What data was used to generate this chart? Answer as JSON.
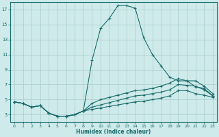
{
  "xlabel": "Humidex (Indice chaleur)",
  "bg_color": "#ceeaea",
  "grid_color": "#b0d0d0",
  "line_color": "#1a6b6b",
  "xlim": [
    -0.5,
    23.5
  ],
  "ylim": [
    2,
    18
  ],
  "xticks": [
    0,
    1,
    2,
    3,
    4,
    5,
    6,
    7,
    8,
    9,
    10,
    11,
    12,
    13,
    14,
    15,
    16,
    17,
    18,
    19,
    20,
    21,
    22,
    23
  ],
  "yticks": [
    3,
    5,
    7,
    9,
    11,
    13,
    15,
    17
  ],
  "series1_x": [
    0,
    1,
    2,
    3,
    4,
    5,
    6,
    7,
    8,
    9,
    10,
    11,
    12,
    13,
    14,
    15,
    16,
    17,
    18,
    19,
    20,
    21,
    22,
    23
  ],
  "series1_y": [
    4.7,
    4.5,
    4.0,
    4.2,
    3.2,
    2.8,
    2.8,
    3.0,
    3.5,
    10.2,
    14.5,
    15.8,
    17.5,
    17.5,
    17.2,
    13.2,
    11.0,
    9.5,
    8.0,
    7.5,
    7.5,
    6.7,
    6.5,
    5.5
  ],
  "series2_x": [
    0,
    1,
    2,
    3,
    4,
    5,
    6,
    7,
    8,
    9,
    10,
    11,
    12,
    13,
    14,
    15,
    16,
    17,
    18,
    19,
    20,
    21,
    22,
    23
  ],
  "series2_y": [
    4.7,
    4.5,
    4.0,
    4.2,
    3.2,
    2.8,
    2.8,
    3.0,
    3.5,
    4.5,
    5.0,
    5.3,
    5.6,
    5.9,
    6.2,
    6.3,
    6.5,
    6.8,
    7.2,
    7.8,
    7.5,
    7.5,
    6.8,
    5.8
  ],
  "series3_x": [
    0,
    1,
    2,
    3,
    4,
    5,
    6,
    7,
    8,
    9,
    10,
    11,
    12,
    13,
    14,
    15,
    16,
    17,
    18,
    19,
    20,
    21,
    22,
    23
  ],
  "series3_y": [
    4.7,
    4.5,
    4.0,
    4.2,
    3.2,
    2.8,
    2.8,
    3.0,
    3.5,
    4.0,
    4.3,
    4.6,
    4.9,
    5.2,
    5.5,
    5.6,
    5.8,
    6.0,
    6.3,
    7.0,
    6.9,
    6.8,
    6.3,
    5.5
  ],
  "series4_x": [
    0,
    1,
    2,
    3,
    4,
    5,
    6,
    7,
    8,
    9,
    10,
    11,
    12,
    13,
    14,
    15,
    16,
    17,
    18,
    19,
    20,
    21,
    22,
    23
  ],
  "series4_y": [
    4.7,
    4.5,
    4.0,
    4.2,
    3.2,
    2.8,
    2.8,
    3.0,
    3.5,
    3.7,
    3.9,
    4.1,
    4.3,
    4.5,
    4.7,
    4.8,
    5.0,
    5.2,
    5.5,
    6.2,
    6.2,
    5.8,
    5.6,
    5.3
  ]
}
